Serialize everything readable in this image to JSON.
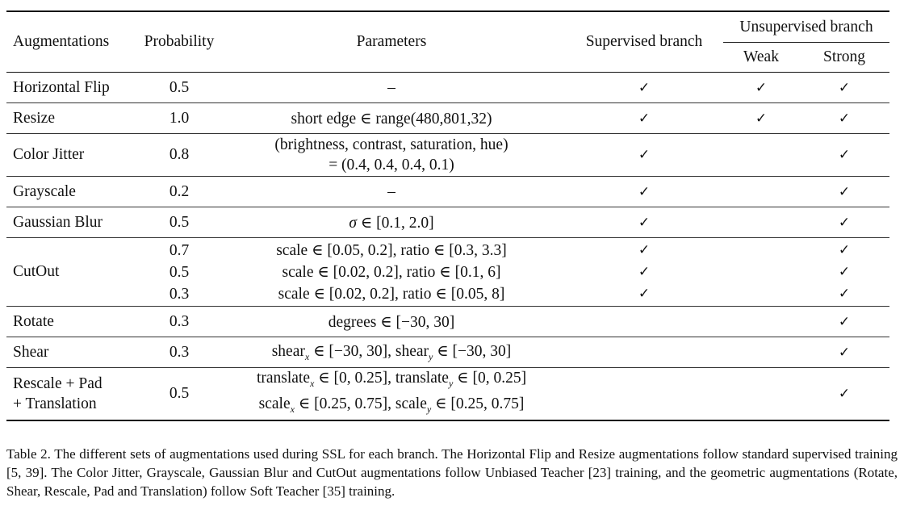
{
  "headers": {
    "augmentations": "Augmentations",
    "probability": "Probability",
    "parameters": "Parameters",
    "supervised": "Supervised branch",
    "unsupervised": "Unsupervised branch",
    "weak": "Weak",
    "strong": "Strong"
  },
  "check_symbol": "✓",
  "rows": [
    {
      "name": "Horizontal Flip",
      "prob": "0.5",
      "param": "–",
      "sup": "✓",
      "weak": "✓",
      "strong": "✓"
    },
    {
      "name": "Resize",
      "prob": "1.0",
      "param": "short edge ∈ range(480,801,32)",
      "sup": "✓",
      "weak": "✓",
      "strong": "✓"
    },
    {
      "name": "Color Jitter",
      "prob": "0.8",
      "param_line1": "(brightness, contrast, saturation, hue)",
      "param_line2": "= (0.4, 0.4, 0.4, 0.1)",
      "sup": "✓",
      "weak": "",
      "strong": "✓"
    },
    {
      "name": "Grayscale",
      "prob": "0.2",
      "param": "–",
      "sup": "✓",
      "weak": "",
      "strong": "✓"
    },
    {
      "name": "Gaussian Blur",
      "prob": "0.5",
      "param_sym": "σ",
      "param_rest": " ∈ [0.1, 2.0]",
      "sup": "✓",
      "weak": "",
      "strong": "✓"
    },
    {
      "name": "CutOut",
      "sub": [
        {
          "prob": "0.7",
          "param": "scale ∈ [0.05, 0.2], ratio ∈ [0.3, 3.3]",
          "sup": "✓",
          "strong": "✓"
        },
        {
          "prob": "0.5",
          "param": "scale ∈ [0.02, 0.2], ratio ∈ [0.1, 6]",
          "sup": "✓",
          "strong": "✓"
        },
        {
          "prob": "0.3",
          "param": "scale ∈ [0.02, 0.2], ratio ∈ [0.05, 8]",
          "sup": "✓",
          "strong": "✓"
        }
      ]
    },
    {
      "name": "Rotate",
      "prob": "0.3",
      "param": "degrees ∈ [−30, 30]",
      "sup": "",
      "weak": "",
      "strong": "✓"
    },
    {
      "name": "Shear",
      "prob": "0.3",
      "param_a": "shear",
      "sub_a": "x",
      "param_b": " ∈ [−30, 30], shear",
      "sub_b": "y",
      "param_c": " ∈ [−30, 30]",
      "sup": "",
      "weak": "",
      "strong": "✓"
    },
    {
      "name_line1": "Rescale + Pad",
      "name_line2": "+ Translation",
      "prob": "0.5",
      "l1_a": "translate",
      "l1_sub_a": "x",
      "l1_b": " ∈ [0, 0.25], translate",
      "l1_sub_b": "y",
      "l1_c": " ∈ [0, 0.25]",
      "l2_a": "scale",
      "l2_sub_a": "x",
      "l2_b": " ∈ [0.25, 0.75], scale",
      "l2_sub_b": "y",
      "l2_c": " ∈ [0.25, 0.75]",
      "sup": "",
      "weak": "",
      "strong": "✓"
    }
  ],
  "caption": "Table 2. The different sets of augmentations used during SSL for each branch. The Horizontal Flip and Resize augmentations follow standard supervised training [5, 39]. The Color Jitter, Grayscale, Gaussian Blur and CutOut augmentations follow Unbiased Teacher [23] training, and the geometric augmentations (Rotate, Shear, Rescale, Pad and Translation) follow Soft Teacher [35] training."
}
